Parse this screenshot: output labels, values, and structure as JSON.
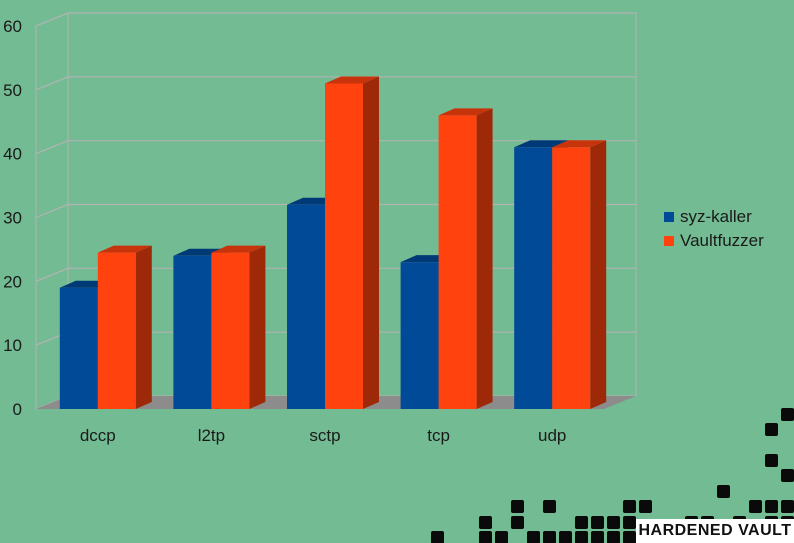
{
  "chart_data": {
    "type": "bar",
    "categories": [
      "dccp",
      "l2tp",
      "sctp",
      "tcp",
      "udp"
    ],
    "series": [
      {
        "name": "syz-kaller",
        "values": [
          19,
          24,
          32,
          23,
          41
        ],
        "color": "#004a97"
      },
      {
        "name": "Vaultfuzzer",
        "values": [
          24.5,
          24.5,
          51,
          46,
          41
        ],
        "color": "#ff420e"
      }
    ],
    "ylim": [
      0,
      60
    ],
    "yticks": [
      0,
      10,
      20,
      30,
      40,
      50,
      60
    ],
    "grid": true,
    "legend": "right",
    "title": "",
    "xlabel": "",
    "ylabel": ""
  },
  "logo": {
    "text": "HARDENED VAULT"
  }
}
